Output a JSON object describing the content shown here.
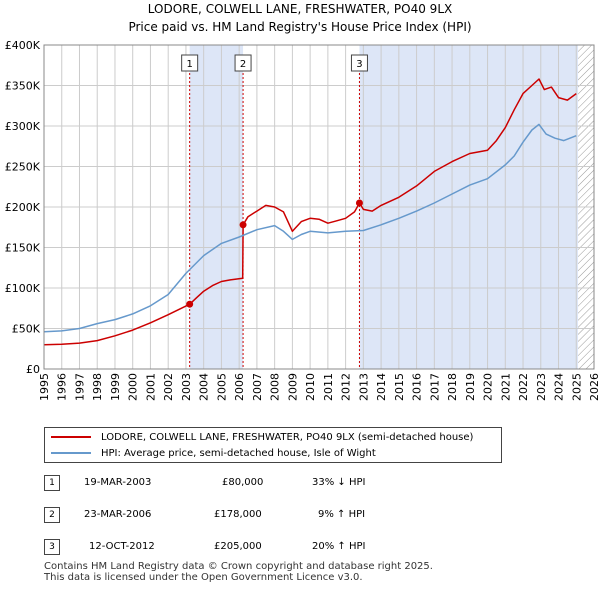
{
  "title_line1": "LODORE, COLWELL LANE, FRESHWATER, PO40 9LX",
  "title_line2": "Price paid vs. HM Land Registry's House Price Index (HPI)",
  "colors": {
    "property": "#cc0000",
    "hpi": "#6699cc",
    "shade": "#dde6f7",
    "grid": "#cccccc"
  },
  "legend": {
    "property_label": "LODORE, COLWELL LANE, FRESHWATER, PO40 9LX (semi-detached house)",
    "hpi_label": "HPI: Average price, semi-detached house, Isle of Wight"
  },
  "transactions": [
    {
      "num": "1",
      "date": "19-MAR-2003",
      "price": "£80,000",
      "hpi": "33% ↓ HPI"
    },
    {
      "num": "2",
      "date": "23-MAR-2006",
      "price": "£178,000",
      "hpi": "9% ↑ HPI"
    },
    {
      "num": "3",
      "date": "12-OCT-2012",
      "price": "£205,000",
      "hpi": "20% ↑ HPI"
    }
  ],
  "footer_line1": "Contains HM Land Registry data © Crown copyright and database right 2025.",
  "footer_line2": "This data is licensed under the Open Government Licence v3.0.",
  "chart_data": {
    "type": "line",
    "xlim": [
      1995,
      2026
    ],
    "ylim": [
      0,
      400000
    ],
    "y_ticks": [
      0,
      50000,
      100000,
      150000,
      200000,
      250000,
      300000,
      350000,
      400000
    ],
    "y_tick_labels": [
      "£0",
      "£50K",
      "£100K",
      "£150K",
      "£200K",
      "£250K",
      "£300K",
      "£350K",
      "£400K"
    ],
    "x_ticks": [
      1995,
      1996,
      1997,
      1998,
      1999,
      2000,
      2001,
      2002,
      2003,
      2004,
      2005,
      2006,
      2007,
      2008,
      2009,
      2010,
      2011,
      2012,
      2013,
      2014,
      2015,
      2016,
      2017,
      2018,
      2019,
      2020,
      2021,
      2022,
      2023,
      2024,
      2025,
      2026
    ],
    "x_tick_labels": [
      "1995",
      "1996",
      "1997",
      "1998",
      "1999",
      "2000",
      "2001",
      "2002",
      "2003",
      "2004",
      "2005",
      "2006",
      "2007",
      "2008",
      "2009",
      "2010",
      "2011",
      "2012",
      "2013",
      "2014",
      "2015",
      "2016",
      "2017",
      "2018",
      "2019",
      "2020",
      "2021",
      "2022",
      "2023",
      "2024",
      "2025",
      "2026"
    ],
    "grid": true,
    "shaded_periods": [
      [
        2003.21,
        2006.22
      ],
      [
        2012.78,
        2025.1
      ]
    ],
    "hatched_from": 2025.1,
    "sale_markers": [
      {
        "label": "1",
        "x": 2003.21,
        "y": 80000
      },
      {
        "label": "2",
        "x": 2006.22,
        "y": 178000
      },
      {
        "label": "3",
        "x": 2012.78,
        "y": 205000
      }
    ],
    "series": [
      {
        "name": "LODORE, COLWELL LANE, FRESHWATER, PO40 9LX (semi-detached house)",
        "color": "#cc0000",
        "x": [
          1995,
          1996,
          1997,
          1998,
          1999,
          2000,
          2001,
          2002,
          2003.21,
          2003.6,
          2004,
          2004.5,
          2005,
          2005.5,
          2006.2,
          2006.22,
          2006.5,
          2007,
          2007.5,
          2008,
          2008.5,
          2009,
          2009.5,
          2010,
          2010.5,
          2011,
          2011.5,
          2012,
          2012.5,
          2012.78,
          2013,
          2013.5,
          2014,
          2015,
          2016,
          2017,
          2018,
          2019,
          2019.5,
          2020,
          2020.5,
          2021,
          2021.5,
          2022,
          2022.5,
          2022.9,
          2023.2,
          2023.6,
          2024,
          2024.5,
          2025
        ],
        "values": [
          30000,
          30500,
          32000,
          35000,
          41000,
          48000,
          57000,
          67000,
          80000,
          88000,
          96000,
          103000,
          108000,
          110000,
          112000,
          178000,
          188000,
          195000,
          202000,
          200000,
          194000,
          170000,
          182000,
          186000,
          185000,
          180000,
          183000,
          186000,
          194000,
          205000,
          197000,
          195000,
          202000,
          212000,
          226000,
          244000,
          256000,
          266000,
          268000,
          270000,
          282000,
          298000,
          320000,
          340000,
          350000,
          358000,
          345000,
          348000,
          335000,
          332000,
          340000
        ]
      },
      {
        "name": "HPI: Average price, semi-detached house, Isle of Wight",
        "color": "#6699cc",
        "x": [
          1995,
          1996,
          1997,
          1998,
          1999,
          2000,
          2001,
          2002,
          2003,
          2004,
          2005,
          2006,
          2007,
          2008,
          2008.5,
          2009,
          2009.5,
          2010,
          2011,
          2012,
          2013,
          2014,
          2015,
          2016,
          2017,
          2018,
          2019,
          2020,
          2021,
          2021.5,
          2022,
          2022.5,
          2022.9,
          2023.3,
          2023.8,
          2024.3,
          2025
        ],
        "values": [
          46000,
          47000,
          50000,
          56000,
          61000,
          68000,
          78000,
          92000,
          118000,
          140000,
          155000,
          163000,
          172000,
          177000,
          170000,
          160000,
          166000,
          170000,
          168000,
          170000,
          171000,
          178000,
          186000,
          195000,
          205000,
          216000,
          227000,
          235000,
          252000,
          263000,
          280000,
          295000,
          302000,
          290000,
          285000,
          282000,
          288000
        ]
      }
    ]
  }
}
